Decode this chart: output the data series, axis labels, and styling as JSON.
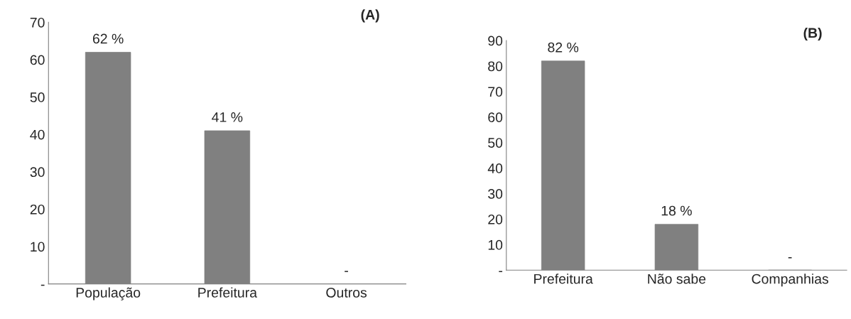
{
  "chart_data": [
    {
      "type": "bar",
      "title": "(A)",
      "categories": [
        "População",
        "Prefeitura",
        "Outros"
      ],
      "values": [
        62,
        41,
        0
      ],
      "color": "#808080",
      "value_labels": [
        "62 %",
        "41 %",
        "-"
      ],
      "ylim": [
        0,
        70
      ],
      "yticks": [
        {
          "value": 0,
          "label": "-"
        },
        10,
        20,
        30,
        40,
        50,
        60,
        70
      ],
      "grid": false,
      "legend": false
    },
    {
      "type": "bar",
      "title": "(B)",
      "categories": [
        "Prefeitura",
        "Não sabe",
        "Companhias"
      ],
      "values": [
        82,
        18,
        0
      ],
      "color": "#808080",
      "value_labels": [
        "82 %",
        "18 %",
        "-"
      ],
      "ylim": [
        0,
        90
      ],
      "yticks": [
        {
          "value": 0,
          "label": "-"
        },
        10,
        20,
        30,
        40,
        50,
        60,
        70,
        80,
        90
      ],
      "grid": false,
      "legend": false
    }
  ]
}
